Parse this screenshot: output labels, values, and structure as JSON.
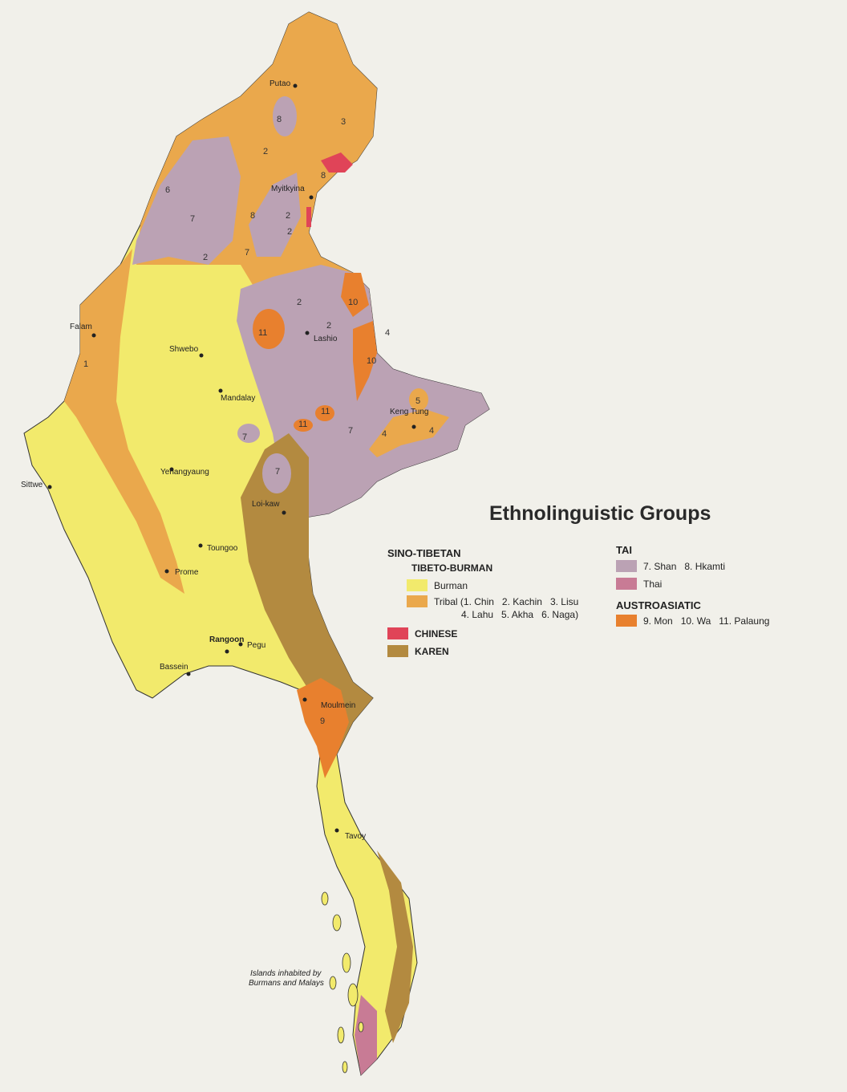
{
  "title": "Ethnolinguistic Groups",
  "colors": {
    "background": "#f1f0ea",
    "burman": "#f2ea6c",
    "tribal": "#eaa84c",
    "chinese": "#e04458",
    "karen": "#b38a40",
    "shan": "#bba2b4",
    "thai": "#c87b95",
    "mon": "#e8802e"
  },
  "legend": {
    "sino_tibetan": "SINO-TIBETAN",
    "tibeto_burman": "TIBETO-BURMAN",
    "burman": "Burman",
    "tribal_line1": "Tribal (1. Chin   2. Kachin   3. Lisu",
    "tribal_line2": "4. Lahu   5. Akha   6. Naga)",
    "chinese": "CHINESE",
    "karen": "KAREN",
    "tai": "TAI",
    "shan": "7. Shan   8. Hkamti",
    "thai": "Thai",
    "austroasiatic": "AUSTROASIATIC",
    "mon": "9. Mon   10. Wa   11. Palaung"
  },
  "cities": [
    {
      "name": "Putao"
    },
    {
      "name": "Myitkyina"
    },
    {
      "name": "Falam"
    },
    {
      "name": "Lashio"
    },
    {
      "name": "Shwebo"
    },
    {
      "name": "Mandalay"
    },
    {
      "name": "Keng Tung"
    },
    {
      "name": "Yenangyaung"
    },
    {
      "name": "Sittwe"
    },
    {
      "name": "Loi-kaw"
    },
    {
      "name": "Toungoo"
    },
    {
      "name": "Prome"
    },
    {
      "name": "Pegu"
    },
    {
      "name": "Rangoon"
    },
    {
      "name": "Bassein"
    },
    {
      "name": "Moulmein"
    },
    {
      "name": "Tavoy"
    }
  ],
  "note_line1": "Islands inhabited by",
  "note_line2": "Burmans and Malays",
  "region_numbers": [
    "8",
    "3",
    "2",
    "8",
    "6",
    "7",
    "8",
    "2",
    "7",
    "2",
    "2",
    "10",
    "2",
    "11",
    "2",
    "4",
    "10",
    "5",
    "11",
    "11",
    "7",
    "4",
    "4",
    "7",
    "7",
    "9",
    "1"
  ]
}
